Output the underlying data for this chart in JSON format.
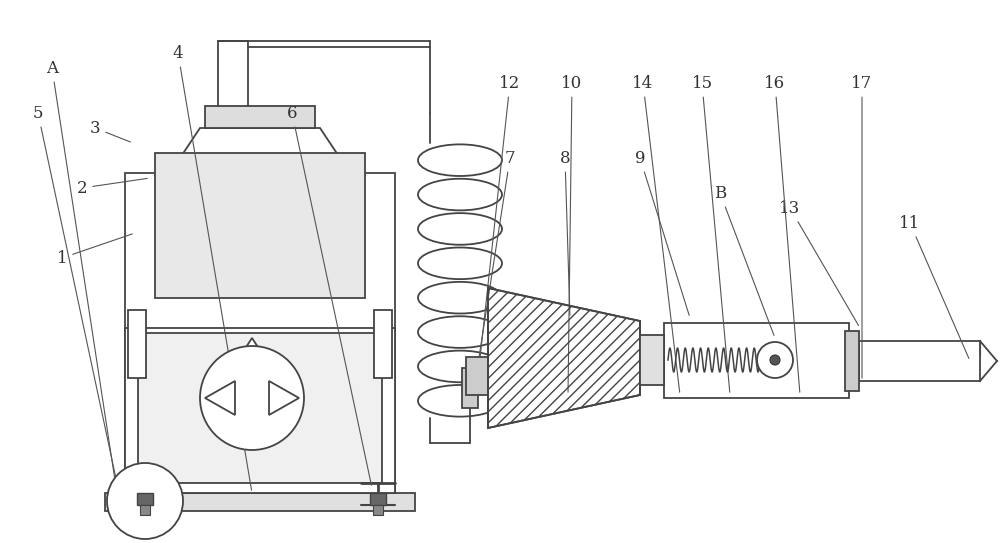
{
  "bg_color": "white",
  "line_color": "#444444",
  "label_color": "#333333",
  "lw": 1.3
}
